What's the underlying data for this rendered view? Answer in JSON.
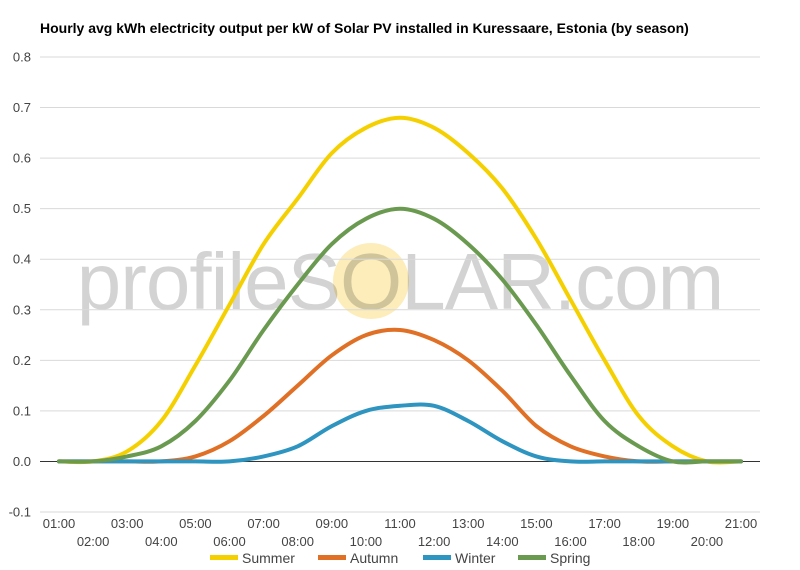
{
  "chart_data": {
    "type": "line",
    "title": "Hourly avg kWh electricity output per kW of Solar PV installed in Kuressaare, Estonia (by season)",
    "xlabel": "",
    "ylabel": "",
    "x": [
      "01:00",
      "02:00",
      "03:00",
      "04:00",
      "05:00",
      "06:00",
      "07:00",
      "08:00",
      "09:00",
      "10:00",
      "11:00",
      "12:00",
      "13:00",
      "14:00",
      "15:00",
      "16:00",
      "17:00",
      "18:00",
      "19:00",
      "20:00",
      "21:00"
    ],
    "ylim": [
      -0.1,
      0.8
    ],
    "yticks": [
      "-0.1",
      "0.0",
      "0.1",
      "0.2",
      "0.3",
      "0.4",
      "0.5",
      "0.6",
      "0.7",
      "0.8"
    ],
    "grid": true,
    "legend_position": "bottom",
    "series": [
      {
        "name": "Summer",
        "color": "#f5d000",
        "values": [
          0.0,
          0.0,
          0.02,
          0.08,
          0.19,
          0.31,
          0.43,
          0.52,
          0.61,
          0.66,
          0.68,
          0.66,
          0.61,
          0.54,
          0.44,
          0.32,
          0.2,
          0.09,
          0.03,
          0.0,
          0.0
        ]
      },
      {
        "name": "Autumn",
        "color": "#e07026",
        "values": [
          0.0,
          0.0,
          0.0,
          0.0,
          0.01,
          0.04,
          0.09,
          0.15,
          0.21,
          0.25,
          0.26,
          0.24,
          0.2,
          0.14,
          0.07,
          0.03,
          0.01,
          0.0,
          0.0,
          0.0,
          0.0
        ]
      },
      {
        "name": "Winter",
        "color": "#2e94c0",
        "values": [
          0.0,
          0.0,
          0.0,
          0.0,
          0.0,
          0.0,
          0.01,
          0.03,
          0.07,
          0.1,
          0.11,
          0.11,
          0.08,
          0.04,
          0.01,
          0.0,
          0.0,
          0.0,
          0.0,
          0.0,
          0.0
        ]
      },
      {
        "name": "Spring",
        "color": "#6a9a50",
        "values": [
          0.0,
          0.0,
          0.01,
          0.03,
          0.08,
          0.16,
          0.26,
          0.35,
          0.43,
          0.48,
          0.5,
          0.48,
          0.43,
          0.36,
          0.27,
          0.17,
          0.08,
          0.03,
          0.0,
          0.0,
          0.0
        ]
      }
    ]
  },
  "watermark": {
    "text": "profileSOLAR.com",
    "sun_color": "#fbe7a3"
  }
}
